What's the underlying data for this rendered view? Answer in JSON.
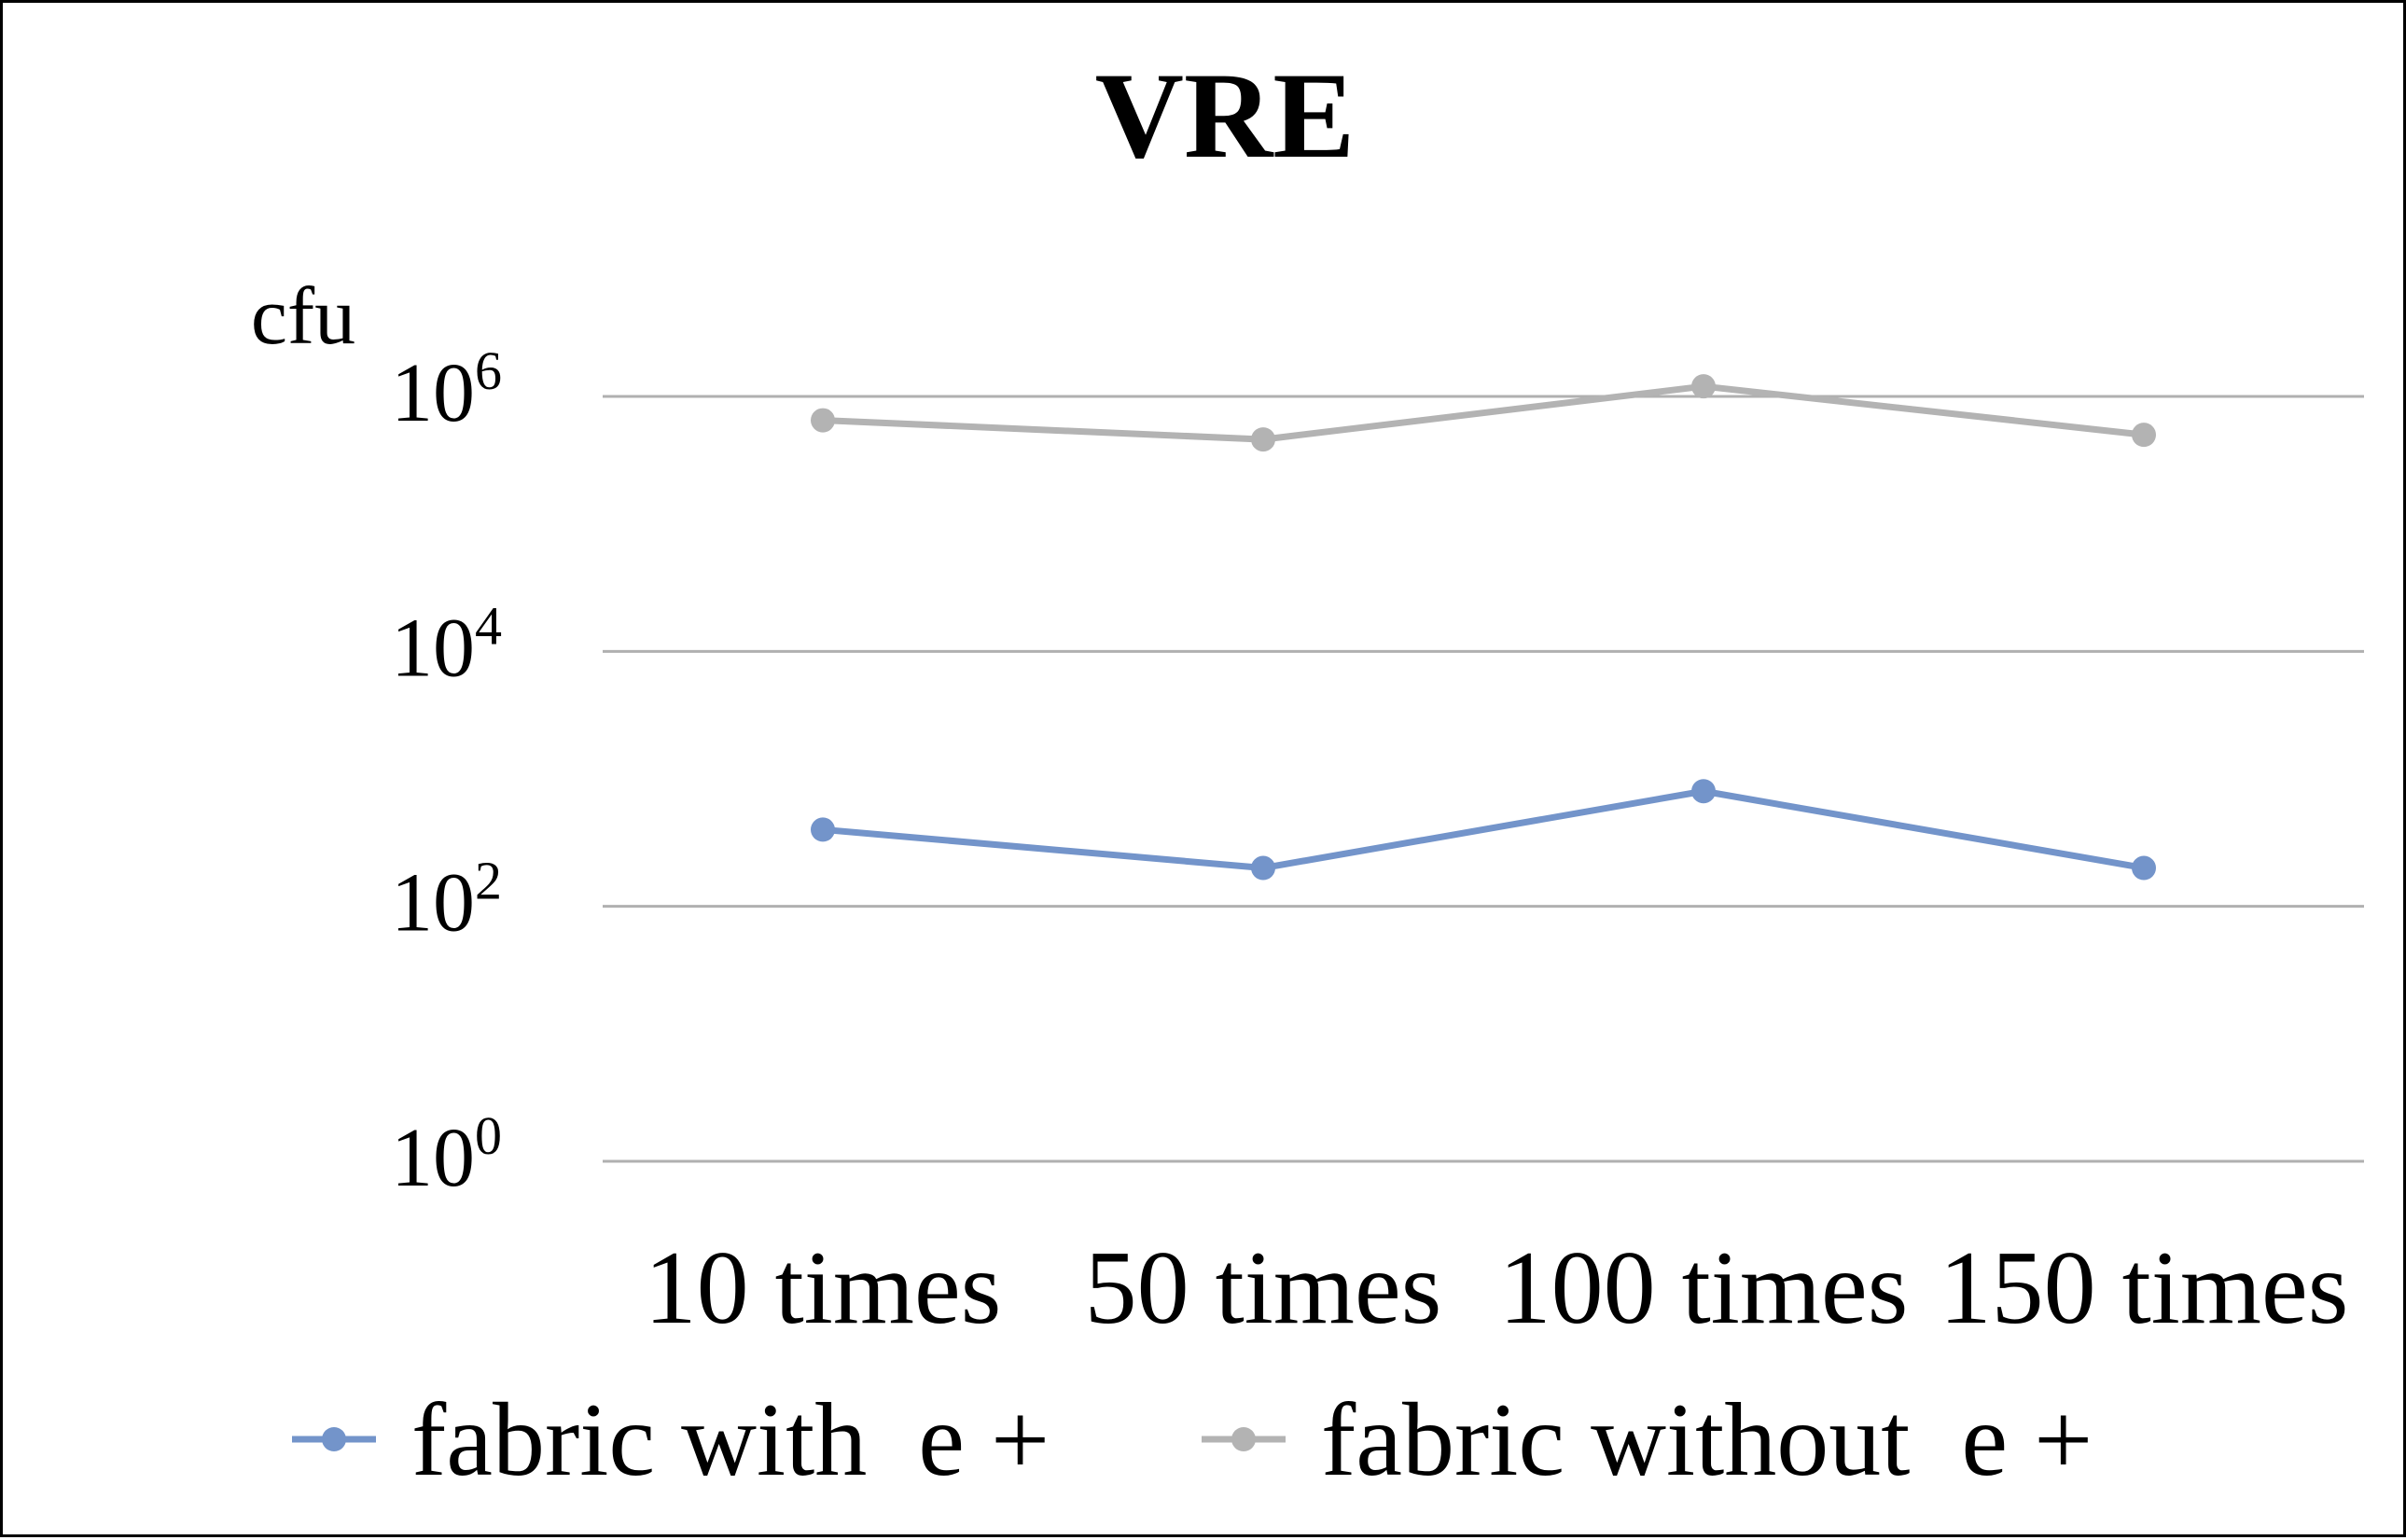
{
  "chart_data": {
    "type": "line",
    "title": "VRE",
    "ylabel": "cfu",
    "xlabel": "",
    "y_scale": "log",
    "ylim": [
      1,
      1000000
    ],
    "y_ticks": [
      {
        "value": 1,
        "base": "10",
        "exponent": "0"
      },
      {
        "value": 100,
        "base": "10",
        "exponent": "2"
      },
      {
        "value": 10000,
        "base": "10",
        "exponent": "4"
      },
      {
        "value": 1000000,
        "base": "10",
        "exponent": "6"
      }
    ],
    "categories": [
      "10 times",
      "50 times",
      "100 times",
      "150 times"
    ],
    "series": [
      {
        "name": "fabric with",
        "symbol": "e +",
        "color": "#7394ca",
        "values": [
          400,
          200,
          800,
          200
        ]
      },
      {
        "name": "fabric without",
        "symbol": "e +",
        "color": "#b3b3b3",
        "values": [
          650000,
          460000,
          1200000,
          500000
        ]
      }
    ],
    "grid": true,
    "legend_position": "bottom",
    "gridline_color": "#b0b0b0"
  }
}
